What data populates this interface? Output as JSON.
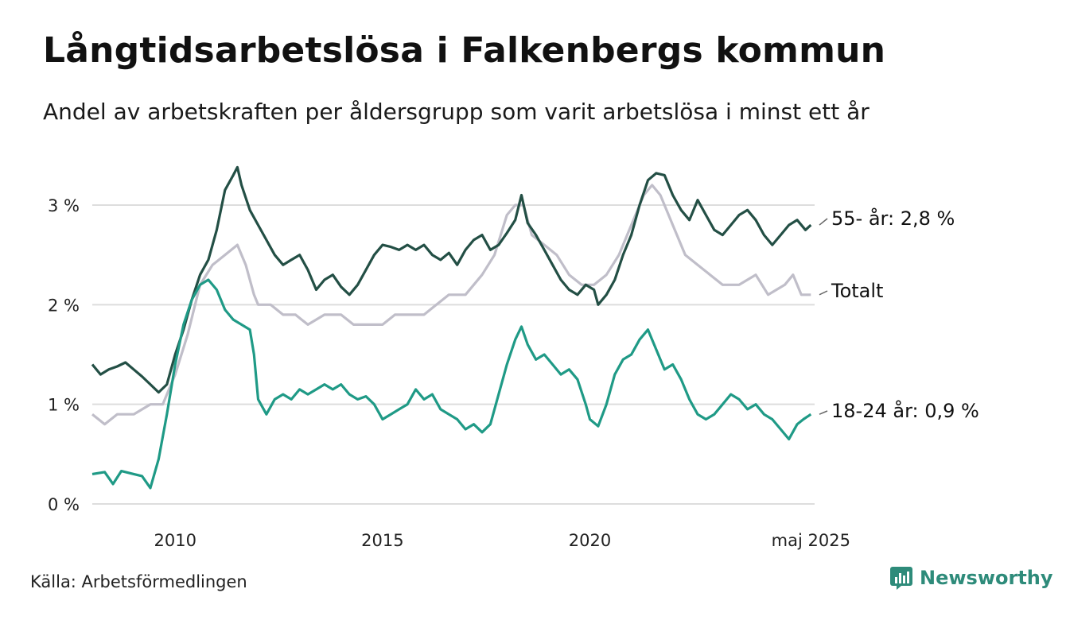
{
  "title": "Långtidsarbetslösa i Falkenbergs kommun",
  "subtitle": "Andel av arbetskraften per åldersgrupp som varit arbetslösa i minst ett år",
  "source": "Källa: Arbetsförmedlingen",
  "brand": "Newsworthy",
  "colors": {
    "s55": "#234f45",
    "total": "#c0bec9",
    "s1824": "#1f9a86",
    "grid": "#dddddd",
    "brand": "#2e8b7a"
  },
  "chart_data": {
    "type": "line",
    "ylim": [
      0,
      3.5
    ],
    "yticks": [
      0,
      1,
      2,
      3
    ],
    "ytick_labels": [
      "0 %",
      "1 %",
      "2 %",
      "3 %"
    ],
    "xlim": [
      2008.0,
      2025.42
    ],
    "xticks": [
      2010,
      2015,
      2020,
      2025.33
    ],
    "xtick_labels": [
      "2010",
      "2015",
      "2020",
      "maj 2025"
    ],
    "grid": true,
    "series": [
      {
        "key": "total",
        "label": "Totalt",
        "points": [
          [
            2008.0,
            0.9
          ],
          [
            2008.3,
            0.8
          ],
          [
            2008.6,
            0.9
          ],
          [
            2009.0,
            0.9
          ],
          [
            2009.4,
            1.0
          ],
          [
            2009.7,
            1.0
          ],
          [
            2010.0,
            1.3
          ],
          [
            2010.3,
            1.7
          ],
          [
            2010.6,
            2.2
          ],
          [
            2010.9,
            2.4
          ],
          [
            2011.2,
            2.5
          ],
          [
            2011.5,
            2.6
          ],
          [
            2011.7,
            2.4
          ],
          [
            2011.9,
            2.1
          ],
          [
            2012.0,
            2.0
          ],
          [
            2012.3,
            2.0
          ],
          [
            2012.6,
            1.9
          ],
          [
            2012.9,
            1.9
          ],
          [
            2013.2,
            1.8
          ],
          [
            2013.6,
            1.9
          ],
          [
            2014.0,
            1.9
          ],
          [
            2014.3,
            1.8
          ],
          [
            2014.6,
            1.8
          ],
          [
            2015.0,
            1.8
          ],
          [
            2015.3,
            1.9
          ],
          [
            2015.6,
            1.9
          ],
          [
            2016.0,
            1.9
          ],
          [
            2016.3,
            2.0
          ],
          [
            2016.6,
            2.1
          ],
          [
            2017.0,
            2.1
          ],
          [
            2017.4,
            2.3
          ],
          [
            2017.7,
            2.5
          ],
          [
            2018.0,
            2.9
          ],
          [
            2018.2,
            3.0
          ],
          [
            2018.4,
            3.0
          ],
          [
            2018.6,
            2.7
          ],
          [
            2018.9,
            2.6
          ],
          [
            2019.2,
            2.5
          ],
          [
            2019.5,
            2.3
          ],
          [
            2019.8,
            2.2
          ],
          [
            2020.1,
            2.2
          ],
          [
            2020.4,
            2.3
          ],
          [
            2020.7,
            2.5
          ],
          [
            2021.0,
            2.8
          ],
          [
            2021.3,
            3.1
          ],
          [
            2021.5,
            3.2
          ],
          [
            2021.7,
            3.1
          ],
          [
            2022.0,
            2.8
          ],
          [
            2022.3,
            2.5
          ],
          [
            2022.6,
            2.4
          ],
          [
            2022.9,
            2.3
          ],
          [
            2023.2,
            2.2
          ],
          [
            2023.6,
            2.2
          ],
          [
            2024.0,
            2.3
          ],
          [
            2024.3,
            2.1
          ],
          [
            2024.7,
            2.2
          ],
          [
            2024.9,
            2.3
          ],
          [
            2025.1,
            2.1
          ],
          [
            2025.33,
            2.1
          ]
        ],
        "end_label": "Totalt"
      },
      {
        "key": "s55",
        "label": "55- år",
        "points": [
          [
            2008.0,
            1.4
          ],
          [
            2008.2,
            1.3
          ],
          [
            2008.4,
            1.35
          ],
          [
            2008.6,
            1.38
          ],
          [
            2008.8,
            1.42
          ],
          [
            2009.0,
            1.35
          ],
          [
            2009.2,
            1.28
          ],
          [
            2009.4,
            1.2
          ],
          [
            2009.6,
            1.12
          ],
          [
            2009.8,
            1.2
          ],
          [
            2010.0,
            1.5
          ],
          [
            2010.2,
            1.75
          ],
          [
            2010.4,
            2.05
          ],
          [
            2010.6,
            2.3
          ],
          [
            2010.8,
            2.45
          ],
          [
            2011.0,
            2.75
          ],
          [
            2011.2,
            3.15
          ],
          [
            2011.4,
            3.3
          ],
          [
            2011.5,
            3.38
          ],
          [
            2011.6,
            3.2
          ],
          [
            2011.8,
            2.95
          ],
          [
            2012.0,
            2.8
          ],
          [
            2012.2,
            2.65
          ],
          [
            2012.4,
            2.5
          ],
          [
            2012.6,
            2.4
          ],
          [
            2012.8,
            2.45
          ],
          [
            2013.0,
            2.5
          ],
          [
            2013.2,
            2.35
          ],
          [
            2013.4,
            2.15
          ],
          [
            2013.6,
            2.25
          ],
          [
            2013.8,
            2.3
          ],
          [
            2014.0,
            2.18
          ],
          [
            2014.2,
            2.1
          ],
          [
            2014.4,
            2.2
          ],
          [
            2014.6,
            2.35
          ],
          [
            2014.8,
            2.5
          ],
          [
            2015.0,
            2.6
          ],
          [
            2015.2,
            2.58
          ],
          [
            2015.4,
            2.55
          ],
          [
            2015.6,
            2.6
          ],
          [
            2015.8,
            2.55
          ],
          [
            2016.0,
            2.6
          ],
          [
            2016.2,
            2.5
          ],
          [
            2016.4,
            2.45
          ],
          [
            2016.6,
            2.52
          ],
          [
            2016.8,
            2.4
          ],
          [
            2017.0,
            2.55
          ],
          [
            2017.2,
            2.65
          ],
          [
            2017.4,
            2.7
          ],
          [
            2017.6,
            2.55
          ],
          [
            2017.8,
            2.6
          ],
          [
            2018.0,
            2.72
          ],
          [
            2018.2,
            2.85
          ],
          [
            2018.35,
            3.1
          ],
          [
            2018.5,
            2.82
          ],
          [
            2018.7,
            2.7
          ],
          [
            2018.9,
            2.55
          ],
          [
            2019.1,
            2.4
          ],
          [
            2019.3,
            2.25
          ],
          [
            2019.5,
            2.15
          ],
          [
            2019.7,
            2.1
          ],
          [
            2019.9,
            2.2
          ],
          [
            2020.1,
            2.15
          ],
          [
            2020.2,
            2.0
          ],
          [
            2020.4,
            2.1
          ],
          [
            2020.6,
            2.25
          ],
          [
            2020.8,
            2.5
          ],
          [
            2021.0,
            2.7
          ],
          [
            2021.2,
            3.0
          ],
          [
            2021.4,
            3.25
          ],
          [
            2021.6,
            3.32
          ],
          [
            2021.8,
            3.3
          ],
          [
            2022.0,
            3.1
          ],
          [
            2022.2,
            2.95
          ],
          [
            2022.4,
            2.85
          ],
          [
            2022.6,
            3.05
          ],
          [
            2022.8,
            2.9
          ],
          [
            2023.0,
            2.75
          ],
          [
            2023.2,
            2.7
          ],
          [
            2023.4,
            2.8
          ],
          [
            2023.6,
            2.9
          ],
          [
            2023.8,
            2.95
          ],
          [
            2024.0,
            2.85
          ],
          [
            2024.2,
            2.7
          ],
          [
            2024.4,
            2.6
          ],
          [
            2024.6,
            2.7
          ],
          [
            2024.8,
            2.8
          ],
          [
            2025.0,
            2.85
          ],
          [
            2025.2,
            2.75
          ],
          [
            2025.33,
            2.8
          ]
        ],
        "end_label": "55- år: 2,8 %"
      },
      {
        "key": "s1824",
        "label": "18-24 år",
        "points": [
          [
            2008.0,
            0.3
          ],
          [
            2008.3,
            0.32
          ],
          [
            2008.5,
            0.2
          ],
          [
            2008.7,
            0.33
          ],
          [
            2009.0,
            0.3
          ],
          [
            2009.2,
            0.28
          ],
          [
            2009.4,
            0.16
          ],
          [
            2009.6,
            0.45
          ],
          [
            2009.8,
            0.9
          ],
          [
            2010.0,
            1.4
          ],
          [
            2010.2,
            1.8
          ],
          [
            2010.4,
            2.05
          ],
          [
            2010.6,
            2.2
          ],
          [
            2010.8,
            2.25
          ],
          [
            2011.0,
            2.15
          ],
          [
            2011.2,
            1.95
          ],
          [
            2011.4,
            1.85
          ],
          [
            2011.6,
            1.8
          ],
          [
            2011.8,
            1.75
          ],
          [
            2011.9,
            1.5
          ],
          [
            2012.0,
            1.05
          ],
          [
            2012.2,
            0.9
          ],
          [
            2012.4,
            1.05
          ],
          [
            2012.6,
            1.1
          ],
          [
            2012.8,
            1.05
          ],
          [
            2013.0,
            1.15
          ],
          [
            2013.2,
            1.1
          ],
          [
            2013.4,
            1.15
          ],
          [
            2013.6,
            1.2
          ],
          [
            2013.8,
            1.15
          ],
          [
            2014.0,
            1.2
          ],
          [
            2014.2,
            1.1
          ],
          [
            2014.4,
            1.05
          ],
          [
            2014.6,
            1.08
          ],
          [
            2014.8,
            1.0
          ],
          [
            2015.0,
            0.85
          ],
          [
            2015.2,
            0.9
          ],
          [
            2015.4,
            0.95
          ],
          [
            2015.6,
            1.0
          ],
          [
            2015.8,
            1.15
          ],
          [
            2016.0,
            1.05
          ],
          [
            2016.2,
            1.1
          ],
          [
            2016.4,
            0.95
          ],
          [
            2016.6,
            0.9
          ],
          [
            2016.8,
            0.85
          ],
          [
            2017.0,
            0.75
          ],
          [
            2017.2,
            0.8
          ],
          [
            2017.4,
            0.72
          ],
          [
            2017.6,
            0.8
          ],
          [
            2017.8,
            1.1
          ],
          [
            2018.0,
            1.4
          ],
          [
            2018.2,
            1.65
          ],
          [
            2018.35,
            1.78
          ],
          [
            2018.5,
            1.6
          ],
          [
            2018.7,
            1.45
          ],
          [
            2018.9,
            1.5
          ],
          [
            2019.1,
            1.4
          ],
          [
            2019.3,
            1.3
          ],
          [
            2019.5,
            1.35
          ],
          [
            2019.7,
            1.25
          ],
          [
            2019.9,
            1.0
          ],
          [
            2020.0,
            0.85
          ],
          [
            2020.2,
            0.78
          ],
          [
            2020.4,
            1.0
          ],
          [
            2020.6,
            1.3
          ],
          [
            2020.8,
            1.45
          ],
          [
            2021.0,
            1.5
          ],
          [
            2021.2,
            1.65
          ],
          [
            2021.4,
            1.75
          ],
          [
            2021.6,
            1.55
          ],
          [
            2021.8,
            1.35
          ],
          [
            2022.0,
            1.4
          ],
          [
            2022.2,
            1.25
          ],
          [
            2022.4,
            1.05
          ],
          [
            2022.6,
            0.9
          ],
          [
            2022.8,
            0.85
          ],
          [
            2023.0,
            0.9
          ],
          [
            2023.2,
            1.0
          ],
          [
            2023.4,
            1.1
          ],
          [
            2023.6,
            1.05
          ],
          [
            2023.8,
            0.95
          ],
          [
            2024.0,
            1.0
          ],
          [
            2024.2,
            0.9
          ],
          [
            2024.4,
            0.85
          ],
          [
            2024.6,
            0.75
          ],
          [
            2024.8,
            0.65
          ],
          [
            2025.0,
            0.8
          ],
          [
            2025.15,
            0.85
          ],
          [
            2025.33,
            0.9
          ]
        ],
        "end_label": "18-24 år: 0,9 %"
      }
    ]
  }
}
